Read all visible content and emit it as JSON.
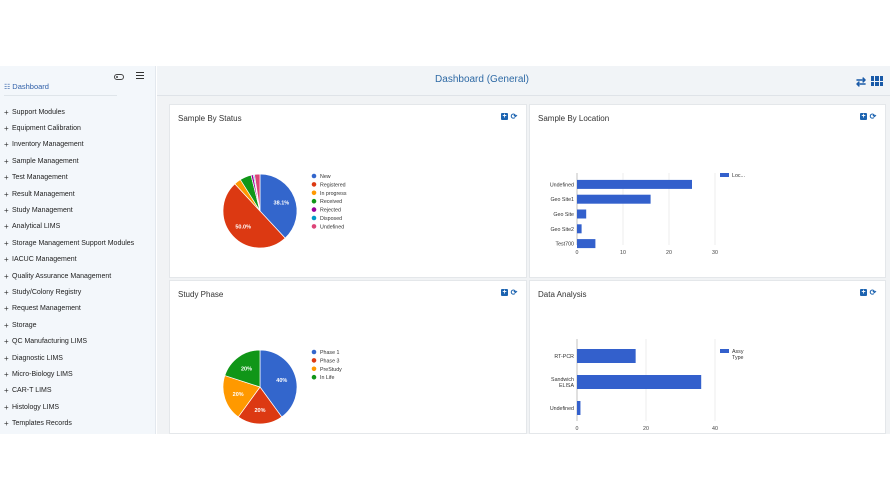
{
  "sidebar": {
    "dashboard_label": "Dashboard",
    "dashboard_icon": "dashboard-icon",
    "items": [
      {
        "label": "Support Modules"
      },
      {
        "label": "Equipment Calibration"
      },
      {
        "label": "Inventory Management"
      },
      {
        "label": "Sample Management"
      },
      {
        "label": "Test Management"
      },
      {
        "label": "Result Management"
      },
      {
        "label": "Study Management"
      },
      {
        "label": "Analytical LIMS"
      },
      {
        "label": "Storage Management Support Modules"
      },
      {
        "label": "IACUC Management"
      },
      {
        "label": "Quality Assurance Management"
      },
      {
        "label": "Study/Colony Registry"
      },
      {
        "label": "Request Management"
      },
      {
        "label": "Storage"
      },
      {
        "label": "QC Manufacturing LIMS"
      },
      {
        "label": "Diagnostic LIMS"
      },
      {
        "label": "Micro-Biology LIMS"
      },
      {
        "label": "CAR-T LIMS"
      },
      {
        "label": "Histology LIMS"
      },
      {
        "label": "Templates Records"
      }
    ]
  },
  "header": {
    "title": "Dashboard (General)"
  },
  "colors": {
    "accent": "#1c63b0",
    "bar": "#3360cc"
  },
  "cards": [
    {
      "title": "Sample By Status"
    },
    {
      "title": "Sample By Location"
    },
    {
      "title": "Study Phase"
    },
    {
      "title": "Data Analysis"
    }
  ],
  "chart_data": [
    {
      "type": "pie",
      "categories": [
        "New",
        "Registered",
        "In progress",
        "Received",
        "Rejected",
        "Disposed",
        "Undefined"
      ],
      "values": [
        38.1,
        50.0,
        3.0,
        5.0,
        1.0,
        0.5,
        2.4
      ],
      "data_labels": [
        "38.1%",
        "50.0%",
        "",
        "",
        "",
        "",
        ""
      ],
      "colors": [
        "#3366cc",
        "#dc3912",
        "#ff9900",
        "#109618",
        "#990099",
        "#0099c6",
        "#dd4477"
      ],
      "legend": "right"
    },
    {
      "type": "bar",
      "orientation": "horizontal",
      "categories": [
        "Undefined",
        "Geo Site1",
        "Geo Site",
        "Geo Site2",
        "Test700"
      ],
      "values": [
        25,
        16,
        2,
        1,
        4
      ],
      "xlim": [
        0,
        30
      ],
      "xticks": [
        "0",
        "10",
        "20",
        "30"
      ],
      "series": [
        {
          "name": "Loc...",
          "values": [
            25,
            16,
            2,
            1,
            4
          ]
        }
      ],
      "legend": "top-right",
      "grid": true
    },
    {
      "type": "pie",
      "categories": [
        "Phase 1",
        "Phase 3",
        "PreStudy",
        "In Life"
      ],
      "values": [
        40,
        20,
        20,
        20
      ],
      "data_labels": [
        "40%",
        "20%",
        "20%",
        "20%"
      ],
      "colors": [
        "#3366cc",
        "#dc3912",
        "#ff9900",
        "#109618"
      ],
      "legend": "right"
    },
    {
      "type": "bar",
      "orientation": "horizontal",
      "categories": [
        "RT-PCR",
        "Sandwich ELISA",
        "Undefined"
      ],
      "values": [
        17,
        36,
        1
      ],
      "xlim": [
        0,
        40
      ],
      "xticks": [
        "0",
        "20",
        "40"
      ],
      "series": [
        {
          "name": "Assy Type",
          "values": [
            17,
            36,
            1
          ]
        }
      ],
      "legend": "top-right",
      "grid": true
    }
  ]
}
